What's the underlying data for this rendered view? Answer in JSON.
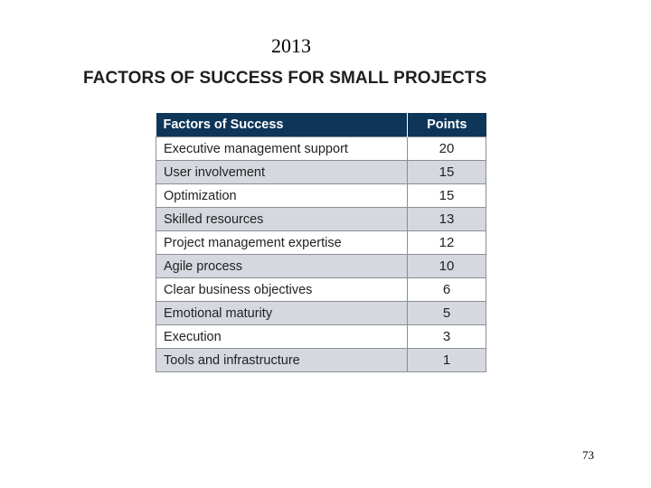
{
  "slide": {
    "year": "2013",
    "heading": "FACTORS OF SUCCESS FOR SMALL PROJECTS",
    "page_number": "73"
  },
  "table": {
    "headers": [
      "Factors of Success",
      "Points"
    ],
    "rows": [
      {
        "factor": "Executive management support",
        "points": "20"
      },
      {
        "factor": "User involvement",
        "points": "15"
      },
      {
        "factor": "Optimization",
        "points": "15"
      },
      {
        "factor": "Skilled resources",
        "points": "13"
      },
      {
        "factor": "Project management expertise",
        "points": "12"
      },
      {
        "factor": "Agile process",
        "points": "10"
      },
      {
        "factor": "Clear business objectives",
        "points": "6"
      },
      {
        "factor": "Emotional maturity",
        "points": "5"
      },
      {
        "factor": "Execution",
        "points": "3"
      },
      {
        "factor": "Tools and infrastructure",
        "points": "1"
      }
    ]
  },
  "colors": {
    "header_bg": "#0d3658",
    "stripe": "#d5d8df"
  }
}
